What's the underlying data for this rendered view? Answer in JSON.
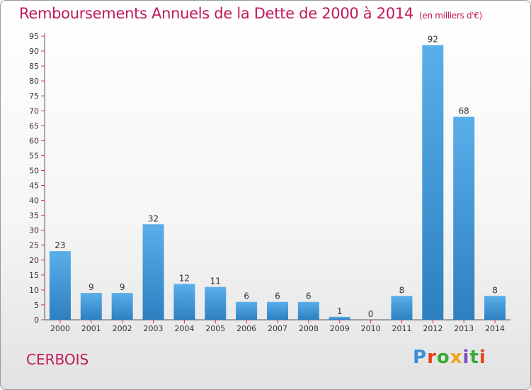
{
  "title": "Remboursements Annuels de la Dette de 2000 à 2014",
  "unit": "(en milliers d'€)",
  "commune": "CERBOIS",
  "logo": {
    "text": "Proxiti",
    "letter_colors": [
      "#3a8fd6",
      "#e6421c",
      "#3aa83a",
      "#f2a020",
      "#7a4fbf",
      "#3aa83a",
      "#e6421c"
    ]
  },
  "colors": {
    "title": "#c2185b",
    "bar_top": "#5aaeea",
    "bar_bottom": "#2e7fc0",
    "tick": "#e91e63"
  },
  "chart_data": {
    "type": "bar",
    "categories": [
      "2000",
      "2001",
      "2002",
      "2003",
      "2004",
      "2005",
      "2006",
      "2007",
      "2008",
      "2009",
      "2010",
      "2011",
      "2012",
      "2013",
      "2014"
    ],
    "values": [
      23,
      9,
      9,
      32,
      12,
      11,
      6,
      6,
      6,
      1,
      0,
      8,
      92,
      68,
      8
    ],
    "y_ticks": [
      0,
      5,
      10,
      15,
      20,
      25,
      30,
      35,
      40,
      45,
      50,
      55,
      60,
      65,
      70,
      75,
      80,
      85,
      90,
      95
    ],
    "ylim": [
      0,
      95
    ],
    "grid": false,
    "legend": "none"
  }
}
